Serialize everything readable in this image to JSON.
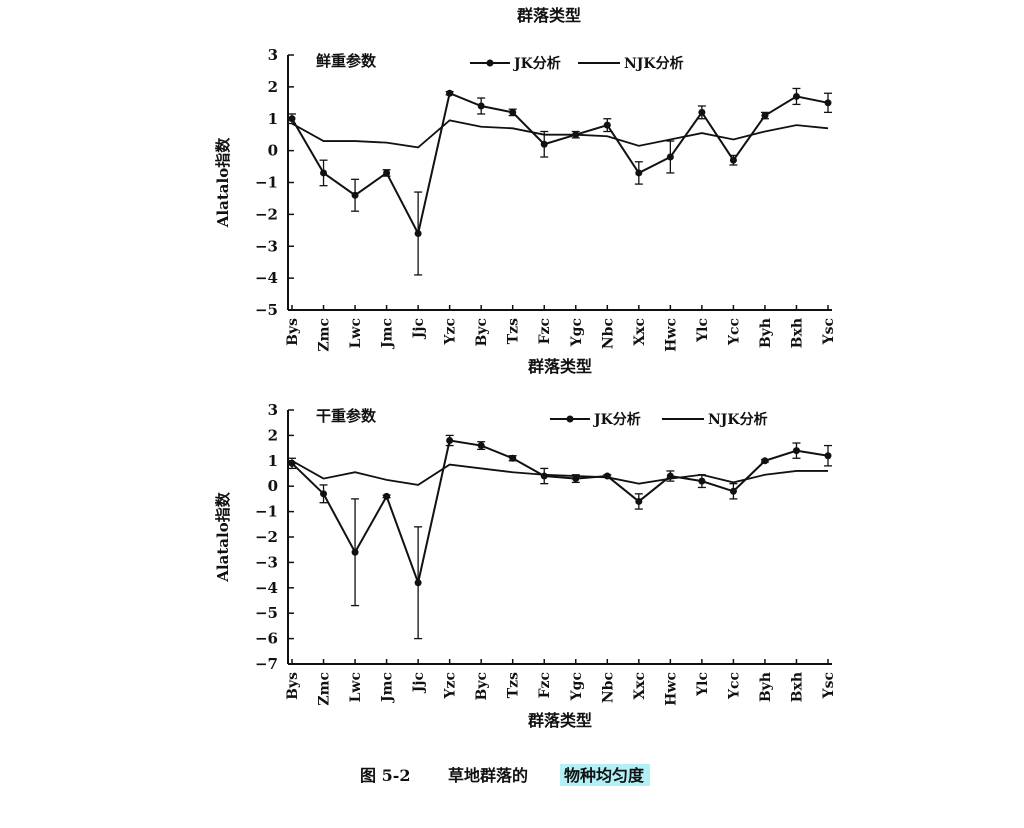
{
  "top_caption": "群落类型",
  "figure_caption": {
    "number": "图 5-2",
    "text_plain": "草地群落的",
    "text_highlight": "物种均匀度",
    "highlight_color": "#7fe6f0"
  },
  "colors": {
    "line": "#111111",
    "background": "#ffffff"
  },
  "chart_data": [
    {
      "type": "line",
      "panel_label": "鲜重参数",
      "xlabel": "群落类型",
      "ylabel": "Alatalo指数",
      "ylim": [
        -5,
        3
      ],
      "yticks": [
        3,
        2,
        1,
        0,
        -1,
        -2,
        -3,
        -4,
        -5
      ],
      "grid": false,
      "legend_position": "top-right",
      "categories": [
        "Bys",
        "Zmc",
        "Lwc",
        "Jmc",
        "Jjc",
        "Yzc",
        "Byc",
        "Tzs",
        "Fzc",
        "Ygc",
        "Nbc",
        "Xxc",
        "Hwc",
        "Ylc",
        "Ycc",
        "Byh",
        "Bxh",
        "Ysc"
      ],
      "series": [
        {
          "name": "JK分析",
          "marker": "circle",
          "values": [
            1.0,
            -0.7,
            -1.4,
            -0.7,
            -2.6,
            1.8,
            1.4,
            1.2,
            0.2,
            0.5,
            0.8,
            -0.7,
            -0.2,
            1.2,
            -0.3,
            1.1,
            1.7,
            1.5
          ],
          "error": [
            0.15,
            0.4,
            0.5,
            0.1,
            1.3,
            0.05,
            0.25,
            0.1,
            0.4,
            0.1,
            0.2,
            0.35,
            0.5,
            0.2,
            0.15,
            0.1,
            0.25,
            0.3
          ]
        },
        {
          "name": "NJK分析",
          "marker": "none",
          "values": [
            0.85,
            0.3,
            0.3,
            0.25,
            0.1,
            0.95,
            0.75,
            0.7,
            0.5,
            0.5,
            0.45,
            0.15,
            0.35,
            0.55,
            0.35,
            0.6,
            0.8,
            0.7
          ]
        }
      ]
    },
    {
      "type": "line",
      "panel_label": "干重参数",
      "xlabel": "群落类型",
      "ylabel": "Alatalo指数",
      "ylim": [
        -7,
        3
      ],
      "yticks": [
        3,
        2,
        1,
        0,
        -1,
        -2,
        -3,
        -4,
        -5,
        -6,
        -7
      ],
      "grid": false,
      "legend_position": "top-right",
      "categories": [
        "Bys",
        "Zmc",
        "Lwc",
        "Jmc",
        "Jjc",
        "Yzc",
        "Byc",
        "Tzs",
        "Fzc",
        "Ygc",
        "Nbc",
        "Xxc",
        "Hwc",
        "Ylc",
        "Ycc",
        "Byh",
        "Bxh",
        "Ysc"
      ],
      "series": [
        {
          "name": "JK分析",
          "marker": "circle",
          "values": [
            0.9,
            -0.3,
            -2.6,
            -0.4,
            -3.8,
            1.8,
            1.6,
            1.1,
            0.4,
            0.3,
            0.4,
            -0.6,
            0.4,
            0.2,
            -0.2,
            1.0,
            1.4,
            1.2
          ],
          "error": [
            0.2,
            0.35,
            2.1,
            0.05,
            2.2,
            0.2,
            0.15,
            0.1,
            0.3,
            0.15,
            0.05,
            0.3,
            0.2,
            0.25,
            0.3,
            0.05,
            0.3,
            0.4
          ]
        },
        {
          "name": "NJK分析",
          "marker": "none",
          "values": [
            1.0,
            0.3,
            0.55,
            0.25,
            0.05,
            0.85,
            0.7,
            0.55,
            0.45,
            0.4,
            0.35,
            0.1,
            0.3,
            0.45,
            0.15,
            0.45,
            0.6,
            0.6
          ]
        }
      ]
    }
  ]
}
